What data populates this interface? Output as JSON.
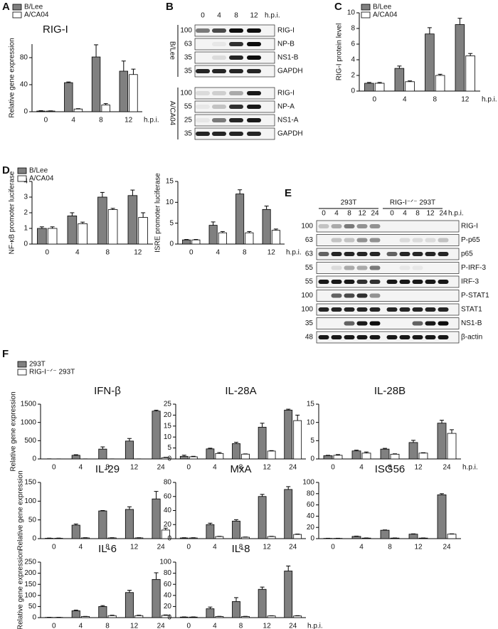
{
  "panels": [
    "A",
    "B",
    "C",
    "D",
    "E",
    "F"
  ],
  "chart_data": [
    {
      "type": "bar",
      "title": "RIG-I",
      "ylabel": "Relative gene expression",
      "xlabel": "h.p.i.",
      "categories": [
        "0",
        "4",
        "8",
        "12"
      ],
      "ylim": [
        0,
        100
      ],
      "yticks": [
        0,
        40,
        80
      ],
      "legend": "top-left",
      "series": [
        {
          "name": "B/Lee",
          "color": "#808080",
          "values": [
            1,
            43,
            81,
            60
          ],
          "errors": [
            0.5,
            1,
            18,
            15
          ]
        },
        {
          "name": "A/CA04",
          "color": "#ffffff",
          "values": [
            1,
            4,
            10,
            55
          ],
          "errors": [
            0.3,
            0.5,
            2,
            8
          ]
        }
      ]
    },
    {
      "type": "bar",
      "ylabel": "RIG-I protein level",
      "xlabel": "h.p.i.",
      "categories": [
        "0",
        "4",
        "8",
        "12"
      ],
      "ylim": [
        0,
        10
      ],
      "yticks": [
        0,
        2,
        4,
        6,
        8,
        10
      ],
      "legend": "top-left",
      "series": [
        {
          "name": "B/Lee",
          "color": "#808080",
          "values": [
            1,
            2.9,
            7.3,
            8.5
          ],
          "errors": [
            0.1,
            0.3,
            0.8,
            0.8
          ]
        },
        {
          "name": "A/CA04",
          "color": "#ffffff",
          "values": [
            1,
            1.2,
            2.0,
            4.5
          ],
          "errors": [
            0.1,
            0.1,
            0.15,
            0.3
          ]
        }
      ]
    },
    {
      "type": "bar",
      "ylabel": "NF-κB promoter luciferase",
      "categories": [
        "0",
        "4",
        "8",
        "12"
      ],
      "ylim": [
        0,
        4
      ],
      "yticks": [
        0,
        1,
        2,
        3,
        4
      ],
      "legend": "top-left",
      "series": [
        {
          "name": "B/Lee",
          "color": "#808080",
          "values": [
            1,
            1.8,
            3.0,
            3.1
          ],
          "errors": [
            0.1,
            0.2,
            0.3,
            0.35
          ]
        },
        {
          "name": "A/CA04",
          "color": "#ffffff",
          "values": [
            1,
            1.3,
            2.2,
            1.7
          ],
          "errors": [
            0.1,
            0.1,
            0.08,
            0.3
          ]
        }
      ]
    },
    {
      "type": "bar",
      "ylabel": "ISRE promoter luciferase",
      "xlabel": "h.p.i.",
      "categories": [
        "0",
        "4",
        "8",
        "12"
      ],
      "ylim": [
        0,
        15
      ],
      "yticks": [
        0,
        5,
        10,
        15
      ],
      "series": [
        {
          "name": "B/Lee",
          "color": "#808080",
          "values": [
            1,
            4.5,
            12,
            8.3
          ],
          "errors": [
            0.1,
            0.8,
            1.0,
            0.8
          ]
        },
        {
          "name": "A/CA04",
          "color": "#ffffff",
          "values": [
            1,
            2.7,
            2.7,
            3.3
          ],
          "errors": [
            0.1,
            0.3,
            0.3,
            0.3
          ]
        }
      ]
    },
    {
      "type": "bar",
      "title": "IFN-β",
      "ylabel": "Relative gene expression",
      "categories": [
        "0",
        "4",
        "8",
        "12",
        "24"
      ],
      "ylim": [
        0,
        1500
      ],
      "yticks": [
        0,
        500,
        1000,
        1500
      ],
      "legend": "above",
      "series": [
        {
          "name": "293T",
          "color": "#808080",
          "values": [
            2,
            100,
            270,
            490,
            1310
          ],
          "errors": [
            1,
            15,
            60,
            70,
            25
          ]
        },
        {
          "name": "RIG-I⁻ᐟ⁻ 293T",
          "color": "#ffffff",
          "values": [
            1,
            1,
            1,
            1,
            35
          ],
          "errors": [
            0.5,
            0.5,
            0.5,
            0.5,
            10
          ]
        }
      ]
    },
    {
      "type": "bar",
      "title": "IL-28A",
      "categories": [
        "0",
        "4",
        "8",
        "12",
        "24"
      ],
      "ylim": [
        0,
        25
      ],
      "yticks": [
        0,
        5,
        10,
        15,
        20,
        25
      ],
      "series": [
        {
          "name": "293T",
          "color": "#808080",
          "values": [
            1.2,
            4.6,
            7.0,
            14.5,
            22.3
          ],
          "errors": [
            0.5,
            0.3,
            0.6,
            1.8,
            0.4
          ]
        },
        {
          "name": "RIG-I⁻ᐟ⁻ 293T",
          "color": "#ffffff",
          "values": [
            1.0,
            2.5,
            2.2,
            3.6,
            17.5
          ],
          "errors": [
            0.2,
            0.4,
            0.1,
            0.2,
            2.5
          ]
        }
      ]
    },
    {
      "type": "bar",
      "title": "IL-28B",
      "xlabel": "h.p.i.",
      "categories": [
        "0",
        "4",
        "8",
        "12",
        "24"
      ],
      "ylim": [
        0,
        15
      ],
      "yticks": [
        0,
        5,
        10,
        15
      ],
      "series": [
        {
          "name": "293T",
          "color": "#808080",
          "values": [
            0.9,
            2.2,
            2.7,
            4.5,
            9.8
          ],
          "errors": [
            0.1,
            0.2,
            0.2,
            0.6,
            0.8
          ]
        },
        {
          "name": "RIG-I⁻ᐟ⁻ 293T",
          "color": "#ffffff",
          "values": [
            1.0,
            1.6,
            1.3,
            1.6,
            7.0
          ],
          "errors": [
            0.2,
            0.3,
            0.1,
            0.1,
            1.0
          ]
        }
      ]
    },
    {
      "type": "bar",
      "title": "IL-29",
      "ylabel": "Relative gene expression",
      "categories": [
        "0",
        "4",
        "8",
        "12",
        "24"
      ],
      "ylim": [
        0,
        150
      ],
      "yticks": [
        0,
        50,
        100,
        150
      ],
      "series": [
        {
          "name": "293T",
          "color": "#808080",
          "values": [
            1,
            36,
            74,
            78,
            106
          ],
          "errors": [
            0.5,
            3,
            1,
            7,
            20
          ]
        },
        {
          "name": "RIG-I⁻ᐟ⁻ 293T",
          "color": "#ffffff",
          "values": [
            1,
            2,
            2,
            2,
            23
          ],
          "errors": [
            0.5,
            0.5,
            0.5,
            0.5,
            5
          ]
        }
      ]
    },
    {
      "type": "bar",
      "title": "MxA",
      "categories": [
        "0",
        "4",
        "8",
        "12",
        "24"
      ],
      "ylim": [
        0,
        80
      ],
      "yticks": [
        0,
        20,
        40,
        60,
        80
      ],
      "series": [
        {
          "name": "293T",
          "color": "#808080",
          "values": [
            1,
            20,
            25,
            60,
            70
          ],
          "errors": [
            0.3,
            2,
            2,
            3,
            4
          ]
        },
        {
          "name": "RIG-I⁻ᐟ⁻ 293T",
          "color": "#ffffff",
          "values": [
            1,
            3,
            2,
            3,
            6
          ],
          "errors": [
            0.3,
            0.3,
            0.3,
            0.3,
            0.5
          ]
        }
      ]
    },
    {
      "type": "bar",
      "title": "ISG56",
      "categories": [
        "0",
        "4",
        "8",
        "12",
        "24"
      ],
      "ylim": [
        0,
        100
      ],
      "yticks": [
        0,
        20,
        40,
        60,
        80,
        100
      ],
      "series": [
        {
          "name": "293T",
          "color": "#808080",
          "values": [
            0.5,
            4,
            15,
            8,
            78
          ],
          "errors": [
            0.2,
            0.5,
            0.5,
            0.5,
            2
          ]
        },
        {
          "name": "RIG-I⁻ᐟ⁻ 293T",
          "color": "#ffffff",
          "values": [
            0.5,
            1,
            1,
            1,
            8
          ],
          "errors": [
            0.2,
            0.2,
            0.2,
            0.2,
            0.5
          ]
        }
      ]
    },
    {
      "type": "bar",
      "title": "IL-6",
      "ylabel": "Relative gene expression",
      "categories": [
        "0",
        "4",
        "8",
        "12",
        "24"
      ],
      "ylim": [
        0,
        250
      ],
      "yticks": [
        0,
        50,
        100,
        150,
        200,
        250
      ],
      "series": [
        {
          "name": "293T",
          "color": "#808080",
          "values": [
            1,
            31,
            50,
            113,
            172
          ],
          "errors": [
            0.5,
            3,
            4,
            10,
            30
          ]
        },
        {
          "name": "RIG-I⁻ᐟ⁻ 293T",
          "color": "#ffffff",
          "values": [
            1,
            5,
            9,
            9,
            10
          ],
          "errors": [
            0.5,
            0.5,
            2,
            2,
            2
          ]
        }
      ]
    },
    {
      "type": "bar",
      "title": "IL-8",
      "xlabel": "h.p.i.",
      "categories": [
        "0",
        "4",
        "8",
        "12",
        "24"
      ],
      "ylim": [
        0,
        100
      ],
      "yticks": [
        0,
        20,
        40,
        60,
        80,
        100
      ],
      "series": [
        {
          "name": "293T",
          "color": "#808080",
          "values": [
            1,
            16,
            29,
            51,
            84
          ],
          "errors": [
            0.3,
            3,
            7,
            4,
            9
          ]
        },
        {
          "name": "RIG-I⁻ᐟ⁻ 293T",
          "color": "#ffffff",
          "values": [
            1,
            2,
            2,
            3,
            3
          ],
          "errors": [
            0.3,
            0.3,
            0.3,
            0.3,
            0.5
          ]
        }
      ]
    }
  ],
  "blots": [
    {
      "lanes": [
        "0",
        "4",
        "8",
        "12"
      ],
      "unit": "h.p.i.",
      "groups": [
        {
          "label": "B/Lee",
          "rows": [
            {
              "marker": "100",
              "name": "RIG-I"
            },
            {
              "marker": "63",
              "name": "NP-B"
            },
            {
              "marker": "35",
              "name": "NS1-B"
            },
            {
              "marker": "35",
              "name": "GAPDH"
            }
          ]
        },
        {
          "label": "A/CA04",
          "rows": [
            {
              "marker": "100",
              "name": "RIG-I"
            },
            {
              "marker": "55",
              "name": "NP-A"
            },
            {
              "marker": "25",
              "name": "NS1-A"
            },
            {
              "marker": "35",
              "name": "GAPDH"
            }
          ]
        }
      ]
    },
    {
      "headers": [
        "293T",
        "RIG-I⁻ᐟ⁻ 293T"
      ],
      "lanes": [
        "0",
        "4",
        "8",
        "12",
        "24",
        "0",
        "4",
        "8",
        "12",
        "24"
      ],
      "unit": "h.p.i.",
      "rows": [
        {
          "marker": "100",
          "name": "RIG-I"
        },
        {
          "marker": "63",
          "name": "P-p65"
        },
        {
          "marker": "63",
          "name": "p65"
        },
        {
          "marker": "55",
          "name": "P-IRF-3"
        },
        {
          "marker": "55",
          "name": "IRF-3"
        },
        {
          "marker": "100",
          "name": "P-STAT1"
        },
        {
          "marker": "100",
          "name": "STAT1"
        },
        {
          "marker": "35",
          "name": "NS1-B"
        },
        {
          "marker": "48",
          "name": "β-actin"
        }
      ]
    }
  ]
}
